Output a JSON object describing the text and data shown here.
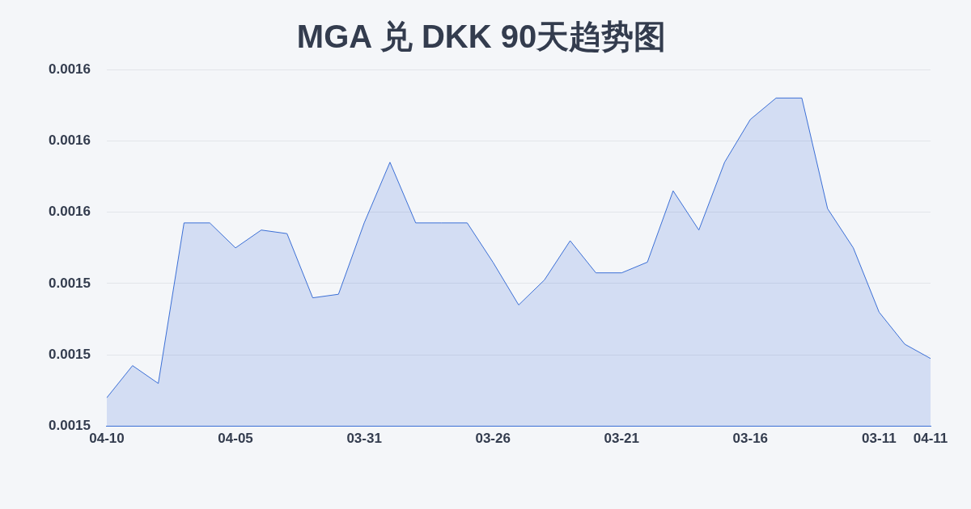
{
  "chart_data": {
    "type": "area",
    "title": "MGA 兑 DKK 90天趋势图",
    "categories": [
      "04-10",
      null,
      null,
      null,
      null,
      "04-05",
      null,
      null,
      null,
      null,
      "03-31",
      null,
      null,
      null,
      null,
      "03-26",
      null,
      null,
      null,
      null,
      "03-21",
      null,
      null,
      null,
      null,
      "03-16",
      null,
      null,
      null,
      null,
      "03-11",
      null,
      "04-11"
    ],
    "series": [
      {
        "color": "#3b6fd6",
        "values": [
          0.001508,
          0.001517,
          0.001512,
          0.001557,
          0.001557,
          0.00155,
          0.001555,
          0.001554,
          0.001536,
          0.001537,
          0.001557,
          0.001574,
          0.001557,
          0.001557,
          0.001557,
          0.001546,
          0.001534,
          0.001541,
          0.001552,
          0.001543,
          0.001543,
          0.001546,
          0.001566,
          0.001555,
          0.001574,
          0.001586,
          0.001592,
          0.001592,
          0.001561,
          0.00155,
          0.001532,
          0.001523,
          0.001519
        ]
      }
    ],
    "ylim": [
      0.0015,
      0.0016
    ],
    "yticks": [
      {
        "value": 0.0015,
        "label": "0.0015"
      },
      {
        "value": 0.00152,
        "label": "0.0015"
      },
      {
        "value": 0.00154,
        "label": "0.0015"
      },
      {
        "value": 0.00156,
        "label": "0.0016"
      },
      {
        "value": 0.00158,
        "label": "0.0016"
      },
      {
        "value": 0.0016,
        "label": "0.0016"
      }
    ],
    "grid": "y",
    "legend": false
  }
}
